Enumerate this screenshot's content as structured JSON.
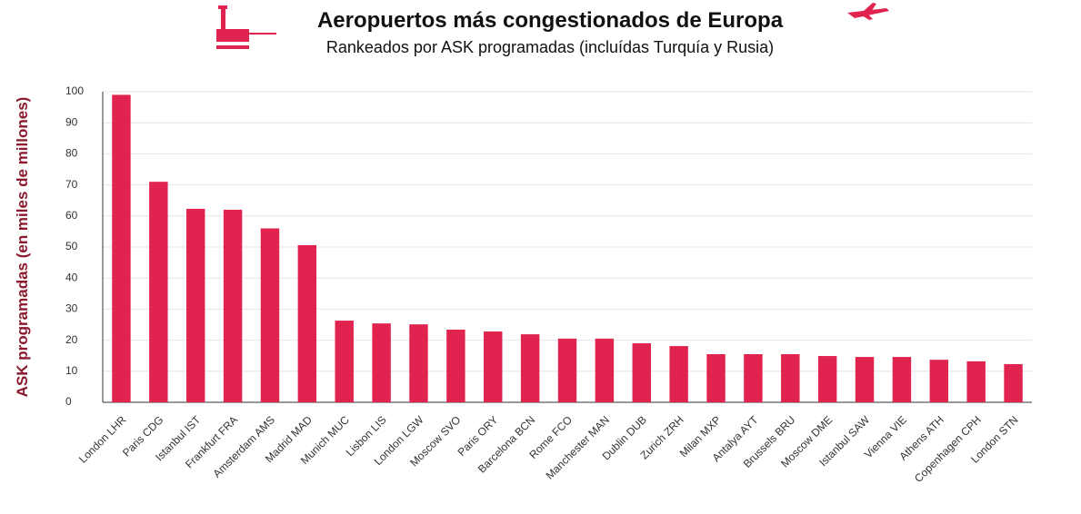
{
  "chart_data": {
    "type": "bar",
    "title": "Aeropuertos más congestionados de Europa",
    "subtitle": "Rankeados por ASK programadas (incluídas Turquía y Rusia)",
    "y_label": "ASK programadas (en miles de millones)",
    "categories": [
      "London LHR",
      "Paris CDG",
      "Istanbul IST",
      "Frankfurt FRA",
      "Amsterdam AMS",
      "Madrid MAD",
      "Munich MUC",
      "Lisbon LIS",
      "London LGW",
      "Moscow SVO",
      "Paris ORY",
      "Barcelona BCN",
      "Rome FCO",
      "Manchester MAN",
      "Dublin DUB",
      "Zurich ZRH",
      "Milan MXP",
      "Antalya AYT",
      "Brussels BRU",
      "Moscow DME",
      "Istanbul SAW",
      "Vienna VIE",
      "Athens ATH",
      "Copenhagen CPH",
      "London STN"
    ],
    "values": [
      99,
      71,
      62.3,
      62,
      56,
      50.6,
      26.3,
      25.4,
      25.1,
      23.4,
      22.8,
      21.9,
      20.5,
      20.5,
      19,
      18.1,
      15.5,
      15.5,
      15.5,
      14.9,
      14.6,
      14.6,
      13.7,
      13.2,
      12.3
    ],
    "color": "#e0244f",
    "ylim": [
      0,
      100
    ],
    "yticks": [
      0,
      10,
      20,
      30,
      40,
      50,
      60,
      70,
      80,
      90,
      100
    ],
    "grid": true
  }
}
